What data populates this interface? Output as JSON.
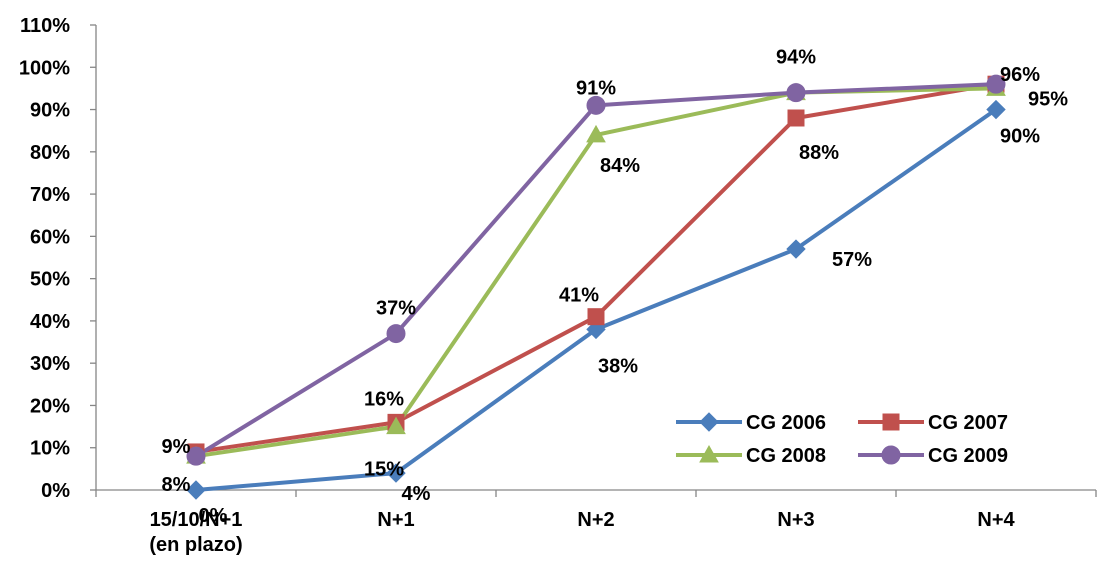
{
  "chart_data": {
    "type": "line",
    "title": "",
    "xlabel": "",
    "ylabel": "",
    "categories": [
      "15/10/N+1\n(en plazo)",
      "N+1",
      "N+2",
      "N+3",
      "N+4"
    ],
    "ylim": [
      0,
      110
    ],
    "yticks": [
      "0%",
      "10%",
      "20%",
      "30%",
      "40%",
      "50%",
      "60%",
      "70%",
      "80%",
      "90%",
      "100%",
      "110%"
    ],
    "grid": false,
    "legend_position": "bottom-right",
    "series": [
      {
        "name": "CG 2006",
        "color": "#4a7dbb",
        "marker": "diamond",
        "values": [
          0,
          4,
          38,
          57,
          90
        ],
        "labels": [
          "0%",
          "4%",
          "38%",
          "57%",
          "90%"
        ]
      },
      {
        "name": "CG 2007",
        "color": "#c0504d",
        "marker": "square",
        "values": [
          9,
          16,
          41,
          88,
          96
        ],
        "labels": [
          "9%",
          "16%",
          "41%",
          "88%",
          "96%"
        ]
      },
      {
        "name": "CG 2008",
        "color": "#9bbb59",
        "marker": "triangle",
        "values": [
          8,
          15,
          84,
          94,
          95
        ],
        "labels": [
          "8%",
          "15%",
          "84%",
          "94%",
          "95%"
        ]
      },
      {
        "name": "CG 2009",
        "color": "#8064a2",
        "marker": "circle",
        "values": [
          8,
          37,
          91,
          94,
          96
        ],
        "labels": [
          "8%",
          "37%",
          "91%",
          "94%",
          "96%"
        ]
      }
    ],
    "label_visibility": [
      [
        true,
        true,
        true,
        true,
        true
      ],
      [
        true,
        true,
        true,
        true,
        false
      ],
      [
        true,
        true,
        true,
        false,
        true
      ],
      [
        false,
        true,
        true,
        true,
        true
      ]
    ]
  }
}
